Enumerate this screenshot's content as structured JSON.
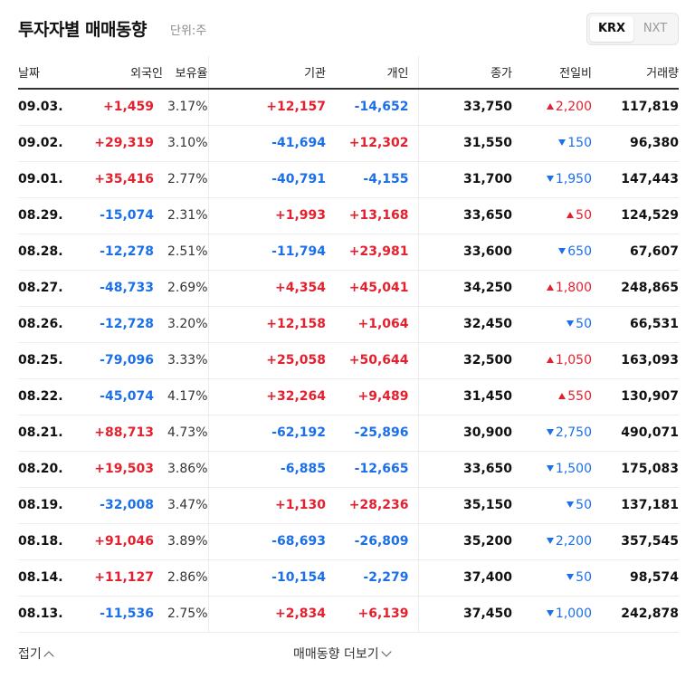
{
  "header": {
    "title": "투자자별 매매동향",
    "unit": "단위:주",
    "markets": [
      {
        "label": "KRX",
        "active": true
      },
      {
        "label": "NXT",
        "active": false
      }
    ]
  },
  "table": {
    "columns": [
      "날짜",
      "외국인",
      "보유율",
      "기관",
      "개인",
      "종가",
      "전일비",
      "거래량"
    ],
    "rows": [
      {
        "date": "09.03.",
        "foreign": "+1,459",
        "hold": "3.17%",
        "inst": "+12,157",
        "indiv": "-14,652",
        "close": "33,750",
        "dir": "up",
        "diff": "2,200",
        "volume": "117,819"
      },
      {
        "date": "09.02.",
        "foreign": "+29,319",
        "hold": "3.10%",
        "inst": "-41,694",
        "indiv": "+12,302",
        "close": "31,550",
        "dir": "down",
        "diff": "150",
        "volume": "96,380"
      },
      {
        "date": "09.01.",
        "foreign": "+35,416",
        "hold": "2.77%",
        "inst": "-40,791",
        "indiv": "-4,155",
        "close": "31,700",
        "dir": "down",
        "diff": "1,950",
        "volume": "147,443"
      },
      {
        "date": "08.29.",
        "foreign": "-15,074",
        "hold": "2.31%",
        "inst": "+1,993",
        "indiv": "+13,168",
        "close": "33,650",
        "dir": "up",
        "diff": "50",
        "volume": "124,529"
      },
      {
        "date": "08.28.",
        "foreign": "-12,278",
        "hold": "2.51%",
        "inst": "-11,794",
        "indiv": "+23,981",
        "close": "33,600",
        "dir": "down",
        "diff": "650",
        "volume": "67,607"
      },
      {
        "date": "08.27.",
        "foreign": "-48,733",
        "hold": "2.69%",
        "inst": "+4,354",
        "indiv": "+45,041",
        "close": "34,250",
        "dir": "up",
        "diff": "1,800",
        "volume": "248,865"
      },
      {
        "date": "08.26.",
        "foreign": "-12,728",
        "hold": "3.20%",
        "inst": "+12,158",
        "indiv": "+1,064",
        "close": "32,450",
        "dir": "down",
        "diff": "50",
        "volume": "66,531"
      },
      {
        "date": "08.25.",
        "foreign": "-79,096",
        "hold": "3.33%",
        "inst": "+25,058",
        "indiv": "+50,644",
        "close": "32,500",
        "dir": "up",
        "diff": "1,050",
        "volume": "163,093"
      },
      {
        "date": "08.22.",
        "foreign": "-45,074",
        "hold": "4.17%",
        "inst": "+32,264",
        "indiv": "+9,489",
        "close": "31,450",
        "dir": "up",
        "diff": "550",
        "volume": "130,907"
      },
      {
        "date": "08.21.",
        "foreign": "+88,713",
        "hold": "4.73%",
        "inst": "-62,192",
        "indiv": "-25,896",
        "close": "30,900",
        "dir": "down",
        "diff": "2,750",
        "volume": "490,071"
      },
      {
        "date": "08.20.",
        "foreign": "+19,503",
        "hold": "3.86%",
        "inst": "-6,885",
        "indiv": "-12,665",
        "close": "33,650",
        "dir": "down",
        "diff": "1,500",
        "volume": "175,083"
      },
      {
        "date": "08.19.",
        "foreign": "-32,008",
        "hold": "3.47%",
        "inst": "+1,130",
        "indiv": "+28,236",
        "close": "35,150",
        "dir": "down",
        "diff": "50",
        "volume": "137,181"
      },
      {
        "date": "08.18.",
        "foreign": "+91,046",
        "hold": "3.89%",
        "inst": "-68,693",
        "indiv": "-26,809",
        "close": "35,200",
        "dir": "down",
        "diff": "2,200",
        "volume": "357,545"
      },
      {
        "date": "08.14.",
        "foreign": "+11,127",
        "hold": "2.86%",
        "inst": "-10,154",
        "indiv": "-2,279",
        "close": "37,400",
        "dir": "down",
        "diff": "50",
        "volume": "98,574"
      },
      {
        "date": "08.13.",
        "foreign": "-11,536",
        "hold": "2.75%",
        "inst": "+2,834",
        "indiv": "+6,139",
        "close": "37,450",
        "dir": "down",
        "diff": "1,000",
        "volume": "242,878"
      }
    ]
  },
  "footer": {
    "fold_label": "접기",
    "more_label": "매매동향 더보기"
  },
  "colors": {
    "up": "#e5202e",
    "down": "#1b6fe8"
  }
}
